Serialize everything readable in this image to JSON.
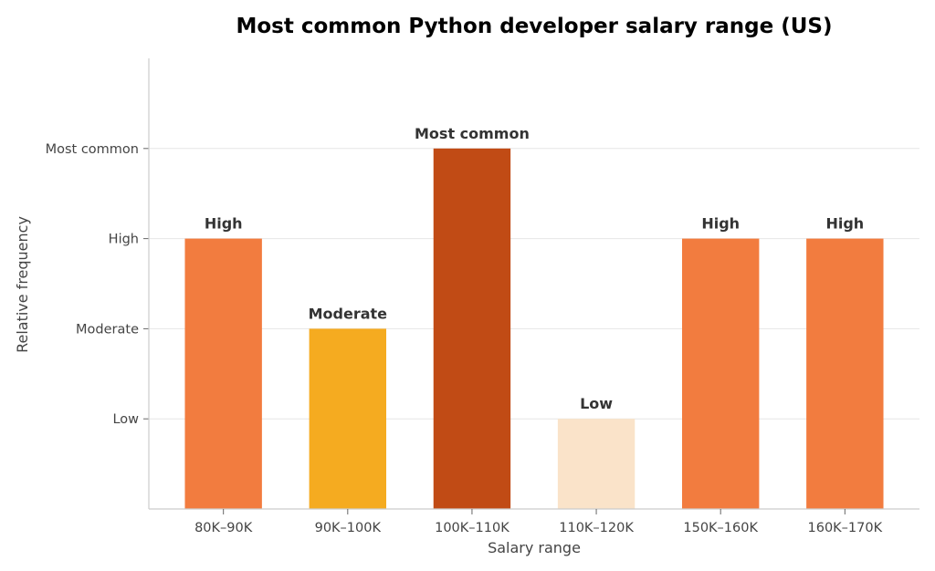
{
  "chart_data": {
    "type": "bar",
    "title": "Most common Python developer salary range (US)",
    "xlabel": "Salary range",
    "ylabel": "Relative frequency",
    "categories": [
      "80K–90K",
      "90K–100K",
      "100K–110K",
      "110K–120K",
      "150K–160K",
      "160K–170K"
    ],
    "values": [
      3,
      2,
      4,
      1,
      3,
      3
    ],
    "value_labels": [
      "High",
      "Moderate",
      "Most common",
      "Low",
      "High",
      "High"
    ],
    "y_ticks": [
      {
        "value": 1,
        "label": "Low"
      },
      {
        "value": 2,
        "label": "Moderate"
      },
      {
        "value": 3,
        "label": "High"
      },
      {
        "value": 4,
        "label": "Most common"
      }
    ],
    "ylim": [
      0,
      5
    ],
    "grid": "horizontal",
    "colors": {
      "Low": "#fae3c9",
      "Moderate": "#f5ab20",
      "High": "#f27c3f",
      "Most common": "#c14b15"
    }
  }
}
